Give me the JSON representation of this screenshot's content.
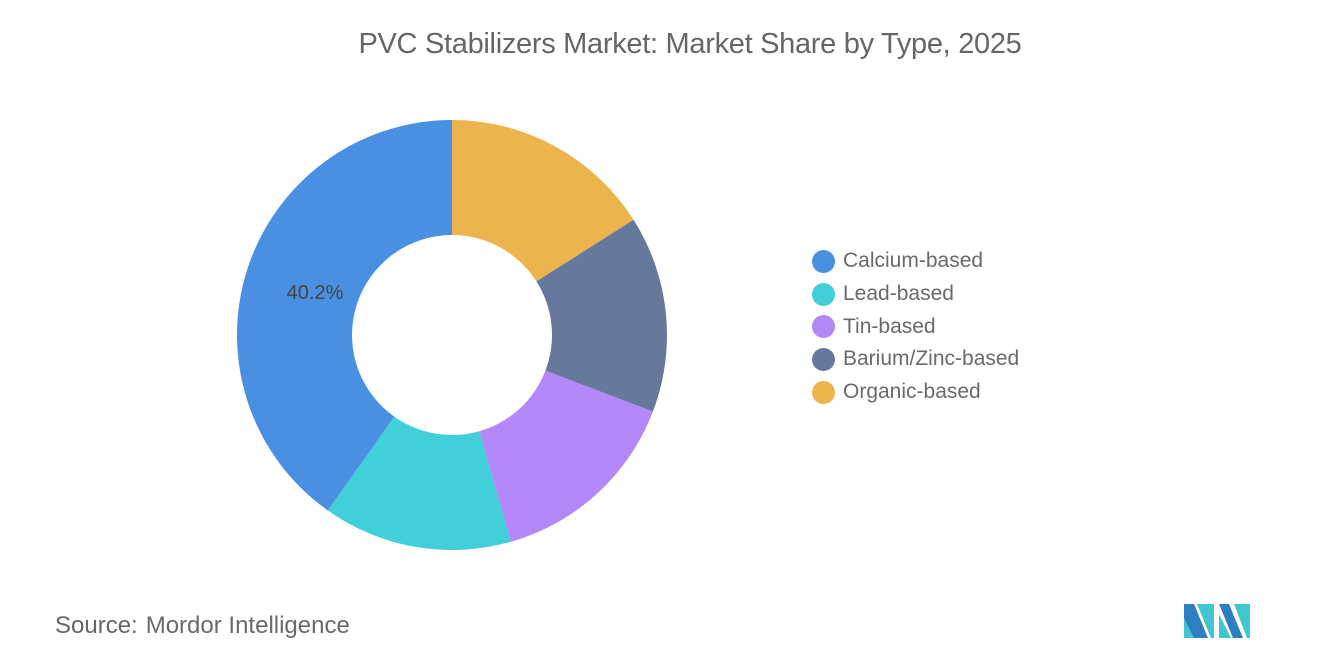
{
  "chart_data": {
    "type": "pie",
    "variant": "donut",
    "title": "PVC Stabilizers Market: Market Share by Type, 2025",
    "categories": [
      "Calcium-based",
      "Lead-based",
      "Tin-based",
      "Barium/Zinc-based",
      "Organic-based"
    ],
    "values": [
      40.2,
      14.2,
      14.8,
      14.8,
      16.0
    ],
    "unit": "%",
    "colors": [
      "#4A90E2",
      "#41CFD9",
      "#B388F9",
      "#66789C",
      "#EBB44D"
    ],
    "labeled_values": [
      {
        "category": "Calcium-based",
        "label": "40.2%"
      }
    ],
    "slice_order_clockwise_from_top": [
      "Organic-based",
      "Barium/Zinc-based",
      "Tin-based",
      "Lead-based",
      "Calcium-based"
    ],
    "legend_position": "right",
    "xlabel": "",
    "ylabel": ""
  },
  "header": {
    "title": "PVC Stabilizers Market: Market Share by Type, 2025"
  },
  "labels": {
    "calcium": "40.2%"
  },
  "legend": {
    "items": [
      {
        "label": "Calcium-based",
        "color": "#4A90E2"
      },
      {
        "label": "Lead-based",
        "color": "#41CFD9"
      },
      {
        "label": "Tin-based",
        "color": "#B388F9"
      },
      {
        "label": "Barium/Zinc-based",
        "color": "#66789C"
      },
      {
        "label": "Organic-based",
        "color": "#EBB44D"
      }
    ]
  },
  "footer": {
    "source_key": "Source:",
    "source_value": "Mordor Intelligence",
    "logo_icon": "mordor-intelligence-logo-icon"
  }
}
